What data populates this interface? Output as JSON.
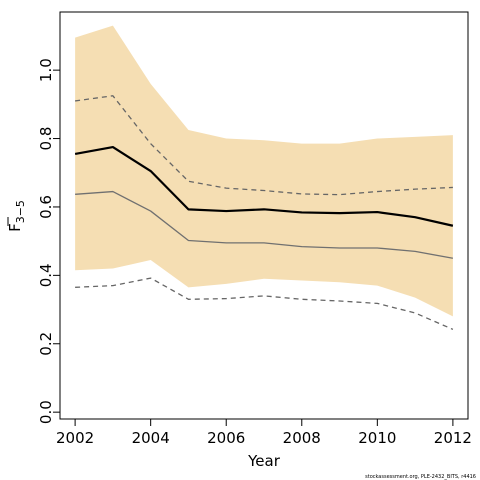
{
  "chart_data": {
    "type": "line",
    "xlabel": "Year",
    "ylabel_base": "F",
    "ylabel_sub": "3−5",
    "xlim": [
      2001.6,
      2012.4
    ],
    "ylim": [
      -0.02,
      1.17
    ],
    "x_ticks": [
      2002,
      2004,
      2006,
      2008,
      2010,
      2012
    ],
    "y_ticks": [
      0.0,
      0.2,
      0.4,
      0.6,
      0.8,
      1.0
    ],
    "y_tick_labels": [
      "0.0",
      "0.2",
      "0.4",
      "0.6",
      "0.8",
      "1.0"
    ],
    "x": [
      2002,
      2003,
      2004,
      2005,
      2006,
      2007,
      2008,
      2009,
      2010,
      2011,
      2012
    ],
    "band": {
      "color": "#f5deb3",
      "upper": [
        1.095,
        1.13,
        0.96,
        0.825,
        0.8,
        0.795,
        0.785,
        0.785,
        0.8,
        0.805,
        0.81
      ],
      "lower": [
        0.415,
        0.42,
        0.445,
        0.365,
        0.375,
        0.39,
        0.385,
        0.38,
        0.37,
        0.335,
        0.28
      ]
    },
    "series": [
      {
        "style": "solid-thick",
        "color": "#000000",
        "values": [
          0.755,
          0.775,
          0.705,
          0.593,
          0.588,
          0.593,
          0.584,
          0.582,
          0.585,
          0.57,
          0.545
        ]
      },
      {
        "style": "solid-thin",
        "color": "#707070",
        "values": [
          0.637,
          0.645,
          0.588,
          0.502,
          0.495,
          0.495,
          0.484,
          0.48,
          0.48,
          0.47,
          0.45
        ]
      },
      {
        "style": "dashed-upper",
        "color": "#666666",
        "values": [
          0.91,
          0.925,
          0.785,
          0.675,
          0.655,
          0.648,
          0.638,
          0.636,
          0.645,
          0.652,
          0.657
        ]
      },
      {
        "style": "dashed-lower",
        "color": "#666666",
        "values": [
          0.365,
          0.37,
          0.392,
          0.33,
          0.332,
          0.34,
          0.33,
          0.325,
          0.318,
          0.29,
          0.242
        ]
      }
    ]
  },
  "footer": {
    "credit": "stockassessment.org, PLE-2432_BITS, r4416"
  }
}
